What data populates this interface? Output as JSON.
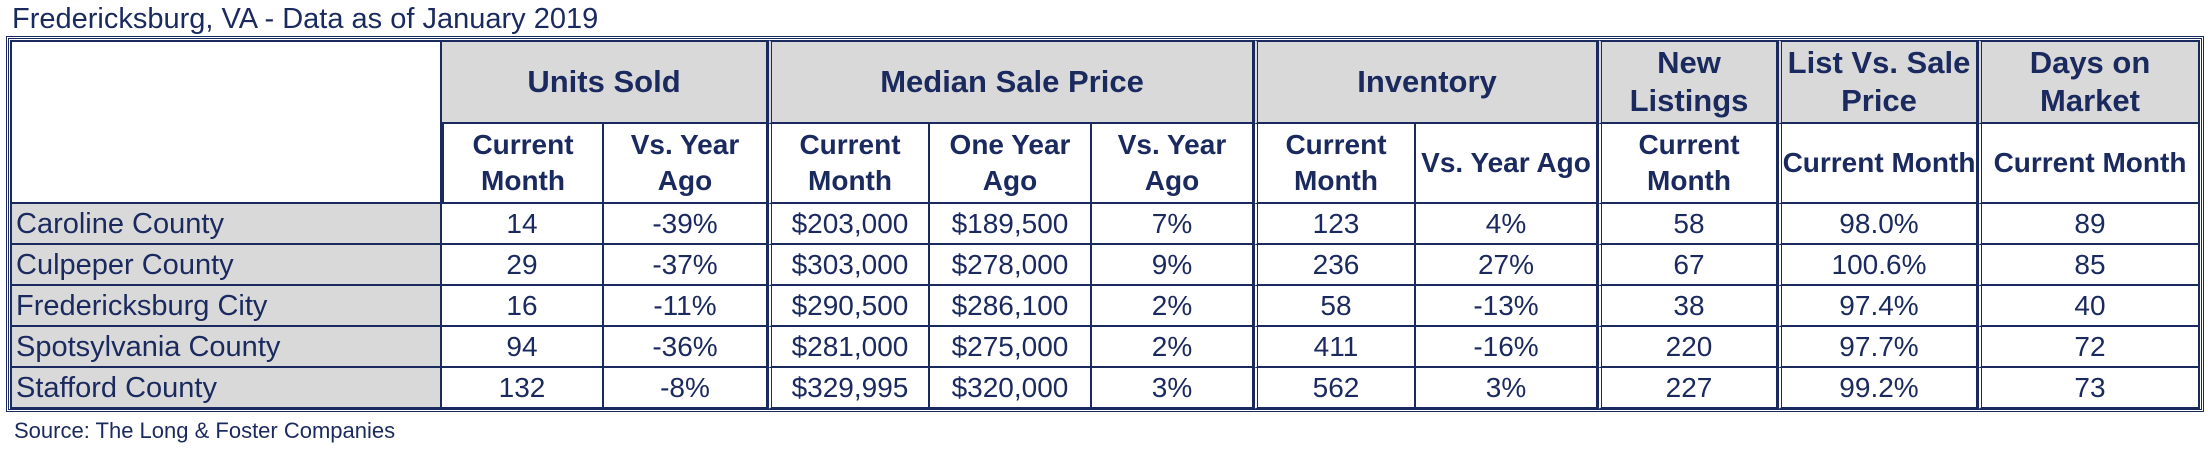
{
  "title": "Fredericksburg, VA - Data as of January 2019",
  "source": "Source: The Long & Foster Companies",
  "colors": {
    "text": "#1b2a5e",
    "header_fill": "#d9d9d9",
    "border": "#1b2a5e"
  },
  "groups": [
    {
      "label": "Units Sold",
      "span": 2
    },
    {
      "label": "Median Sale Price",
      "span": 3
    },
    {
      "label": "Inventory",
      "span": 2
    },
    {
      "label": "New Listings",
      "span": 1
    },
    {
      "label": "List Vs. Sale Price",
      "span": 1
    },
    {
      "label": "Days on Market",
      "span": 1
    }
  ],
  "subheaders": [
    "Current Month",
    "Vs. Year Ago",
    "Current Month",
    "One Year Ago",
    "Vs. Year Ago",
    "Current Month",
    "Vs. Year Ago",
    "Current Month",
    "Current Month",
    "Current Month"
  ],
  "rows": [
    {
      "name": "Caroline County",
      "values": [
        "14",
        "-39%",
        "$203,000",
        "$189,500",
        "7%",
        "123",
        "4%",
        "58",
        "98.0%",
        "89"
      ]
    },
    {
      "name": "Culpeper County",
      "values": [
        "29",
        "-37%",
        "$303,000",
        "$278,000",
        "9%",
        "236",
        "27%",
        "67",
        "100.6%",
        "85"
      ]
    },
    {
      "name": "Fredericksburg City",
      "values": [
        "16",
        "-11%",
        "$290,500",
        "$286,100",
        "2%",
        "58",
        "-13%",
        "38",
        "97.4%",
        "40"
      ]
    },
    {
      "name": "Spotsylvania County",
      "values": [
        "94",
        "-36%",
        "$281,000",
        "$275,000",
        "2%",
        "411",
        "-16%",
        "220",
        "97.7%",
        "72"
      ]
    },
    {
      "name": "Stafford County",
      "values": [
        "132",
        "-8%",
        "$329,995",
        "$320,000",
        "3%",
        "562",
        "3%",
        "227",
        "99.2%",
        "73"
      ]
    }
  ]
}
